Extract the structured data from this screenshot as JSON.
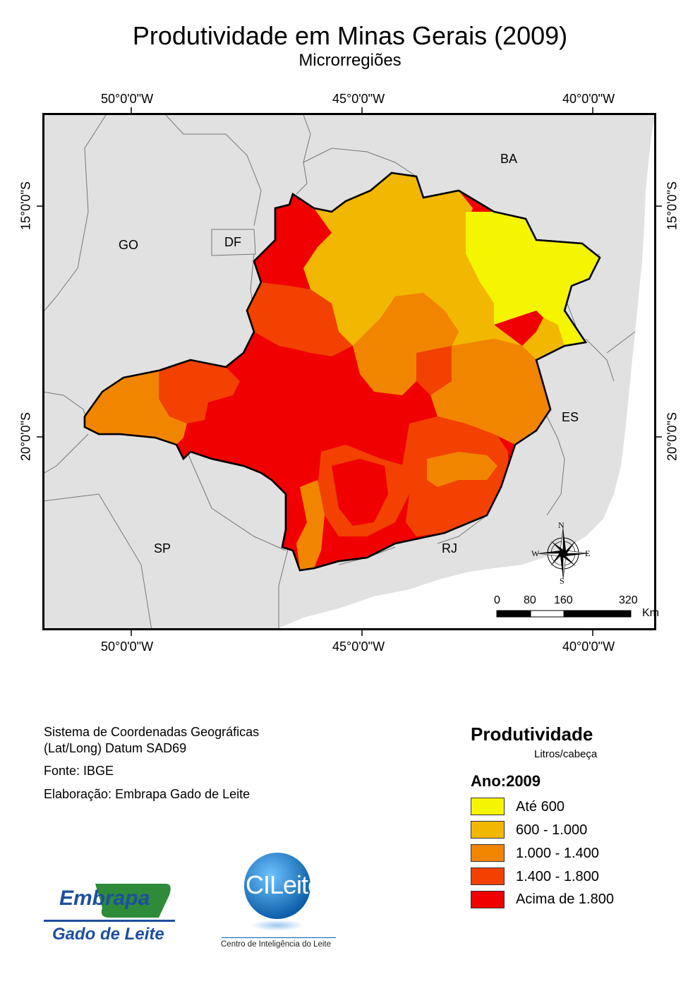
{
  "title": "Produtividade em Minas Gerais (2009)",
  "subtitle": "Microrregiões",
  "graticule": {
    "lon_top": [
      "50°0'0\"W",
      "45°0'0\"W",
      "40°0'0\"W"
    ],
    "lon_bottom": [
      "50°0'0\"W",
      "45°0'0\"W",
      "40°0'0\"W"
    ],
    "lat_left": [
      "15°0'0\"S",
      "20°0'0\"S"
    ],
    "lat_right": [
      "15°0'0\"S",
      "20°0'0\"S"
    ]
  },
  "states": {
    "ba": "BA",
    "go": "GO",
    "df": "DF",
    "es": "ES",
    "sp": "SP",
    "rj": "RJ"
  },
  "compass": {
    "n": "N",
    "s": "S",
    "e": "E",
    "w": "W"
  },
  "scale": {
    "ticks": [
      "0",
      "80",
      "160",
      "320"
    ],
    "unit": "Km"
  },
  "info": {
    "line1": "Sistema de Coordenadas Geográficas",
    "line2": "(Lat/Long) Datum SAD69",
    "source": "Fonte: IBGE",
    "author": "Elaboração: Embrapa Gado de Leite"
  },
  "legend": {
    "title": "Produtividade",
    "unit": "Litros/cabeça",
    "year": "Ano:2009",
    "classes": [
      {
        "label": "Até 600",
        "color": "#f5f500"
      },
      {
        "label": "600 - 1.000",
        "color": "#f2b700"
      },
      {
        "label": "1.000 - 1.400",
        "color": "#f28500"
      },
      {
        "label": "1.400 - 1.800",
        "color": "#f24100"
      },
      {
        "label": "Acima de 1.800",
        "color": "#f00000"
      }
    ]
  },
  "logos": {
    "embrapa_name": "Embrapa",
    "embrapa_unit": "Gado de Leite",
    "cileite_name": "CILeite",
    "cileite_caption": "Centro de Inteligência do Leite"
  },
  "colors": {
    "background_land": "#e1e1e1",
    "border": "#000000",
    "sea": "#ffffff"
  }
}
